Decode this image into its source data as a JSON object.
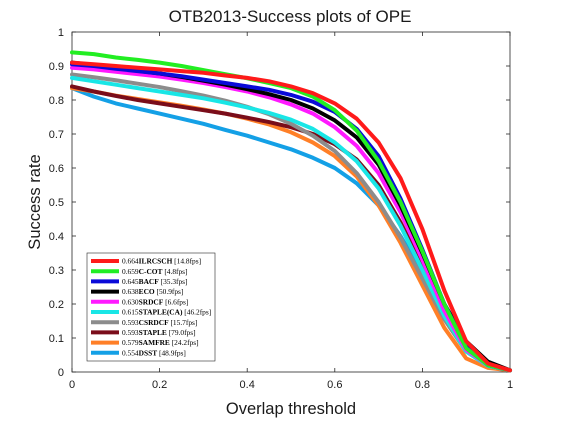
{
  "chart_data": {
    "type": "line",
    "title": "OTB2013-Success plots of OPE",
    "xlabel": "Overlap threshold",
    "ylabel": "Success rate",
    "xlim": [
      0,
      1
    ],
    "ylim": [
      0,
      1
    ],
    "xticks": [
      0,
      0.2,
      0.4,
      0.6,
      0.8,
      1
    ],
    "xtick_labels": [
      "0",
      "0.2",
      "0.4",
      "0.6",
      "0.8",
      "1"
    ],
    "yticks": [
      0,
      0.1,
      0.2,
      0.3,
      0.4,
      0.5,
      0.6,
      0.7,
      0.8,
      0.9,
      1
    ],
    "ytick_labels": [
      "0",
      "0.1",
      "0.2",
      "0.3",
      "0.4",
      "0.5",
      "0.6",
      "0.7",
      "0.8",
      "0.9",
      "1"
    ],
    "grid": false,
    "legend_position": "bottom-left",
    "x": [
      0,
      0.05,
      0.1,
      0.15,
      0.2,
      0.25,
      0.3,
      0.35,
      0.4,
      0.45,
      0.5,
      0.55,
      0.6,
      0.65,
      0.7,
      0.75,
      0.8,
      0.85,
      0.9,
      0.95,
      1
    ],
    "series": [
      {
        "name": "ILRCSCH",
        "score": "0.664",
        "fps": "14.8fps",
        "color": "#ff1a1a",
        "values": [
          0.91,
          0.905,
          0.9,
          0.895,
          0.89,
          0.885,
          0.88,
          0.872,
          0.865,
          0.855,
          0.84,
          0.82,
          0.79,
          0.745,
          0.675,
          0.57,
          0.42,
          0.24,
          0.09,
          0.025,
          0.005
        ]
      },
      {
        "name": "C-COT",
        "score": "0.659",
        "fps": "4.8fps",
        "color": "#22ee22",
        "values": [
          0.94,
          0.935,
          0.925,
          0.918,
          0.91,
          0.9,
          0.888,
          0.876,
          0.864,
          0.85,
          0.835,
          0.81,
          0.77,
          0.71,
          0.62,
          0.5,
          0.355,
          0.2,
          0.07,
          0.02,
          0.005
        ]
      },
      {
        "name": "BACF",
        "score": "0.645",
        "fps": "35.3fps",
        "color": "#0a0ad8",
        "values": [
          0.905,
          0.9,
          0.892,
          0.885,
          0.878,
          0.87,
          0.86,
          0.85,
          0.84,
          0.83,
          0.815,
          0.795,
          0.765,
          0.715,
          0.635,
          0.51,
          0.36,
          0.2,
          0.075,
          0.02,
          0.005
        ]
      },
      {
        "name": "ECO",
        "score": "0.638",
        "fps": "50.9fps",
        "color": "#000000",
        "values": [
          0.91,
          0.903,
          0.894,
          0.886,
          0.878,
          0.868,
          0.857,
          0.845,
          0.832,
          0.817,
          0.8,
          0.775,
          0.74,
          0.69,
          0.61,
          0.49,
          0.35,
          0.2,
          0.09,
          0.03,
          0.005
        ]
      },
      {
        "name": "SRDCF",
        "score": "0.630",
        "fps": "6.6fps",
        "color": "#ff19ff",
        "values": [
          0.895,
          0.89,
          0.883,
          0.876,
          0.869,
          0.86,
          0.85,
          0.838,
          0.825,
          0.808,
          0.787,
          0.76,
          0.72,
          0.665,
          0.585,
          0.47,
          0.33,
          0.18,
          0.065,
          0.02,
          0.005
        ]
      },
      {
        "name": "STAPLE(CA)",
        "score": "0.615",
        "fps": "46.2fps",
        "color": "#19e6e6",
        "values": [
          0.865,
          0.855,
          0.845,
          0.835,
          0.825,
          0.815,
          0.805,
          0.792,
          0.778,
          0.762,
          0.742,
          0.715,
          0.675,
          0.62,
          0.54,
          0.43,
          0.3,
          0.165,
          0.06,
          0.018,
          0.005
        ]
      },
      {
        "name": "CSRDCF",
        "score": "0.593",
        "fps": "15.7fps",
        "color": "#8c8c8c",
        "values": [
          0.875,
          0.867,
          0.858,
          0.848,
          0.838,
          0.826,
          0.813,
          0.798,
          0.78,
          0.758,
          0.73,
          0.695,
          0.65,
          0.585,
          0.5,
          0.395,
          0.275,
          0.155,
          0.06,
          0.018,
          0.005
        ]
      },
      {
        "name": "STAPLE",
        "score": "0.593",
        "fps": "79.0fps",
        "color": "#7a0d1a",
        "values": [
          0.84,
          0.825,
          0.812,
          0.8,
          0.79,
          0.78,
          0.77,
          0.76,
          0.748,
          0.735,
          0.72,
          0.7,
          0.67,
          0.625,
          0.55,
          0.44,
          0.31,
          0.175,
          0.065,
          0.02,
          0.005
        ]
      },
      {
        "name": "SAMFRE",
        "score": "0.579",
        "fps": "24.2fps",
        "color": "#ff7f27",
        "values": [
          0.835,
          0.825,
          0.813,
          0.803,
          0.793,
          0.783,
          0.772,
          0.76,
          0.745,
          0.728,
          0.705,
          0.675,
          0.635,
          0.575,
          0.49,
          0.38,
          0.255,
          0.13,
          0.04,
          0.012,
          0.005
        ]
      },
      {
        "name": "DSST",
        "score": "0.554",
        "fps": "48.9fps",
        "color": "#14a0e6",
        "values": [
          0.835,
          0.81,
          0.79,
          0.775,
          0.76,
          0.745,
          0.73,
          0.712,
          0.695,
          0.675,
          0.655,
          0.63,
          0.6,
          0.555,
          0.49,
          0.4,
          0.29,
          0.17,
          0.07,
          0.02,
          0.005
        ]
      }
    ]
  }
}
